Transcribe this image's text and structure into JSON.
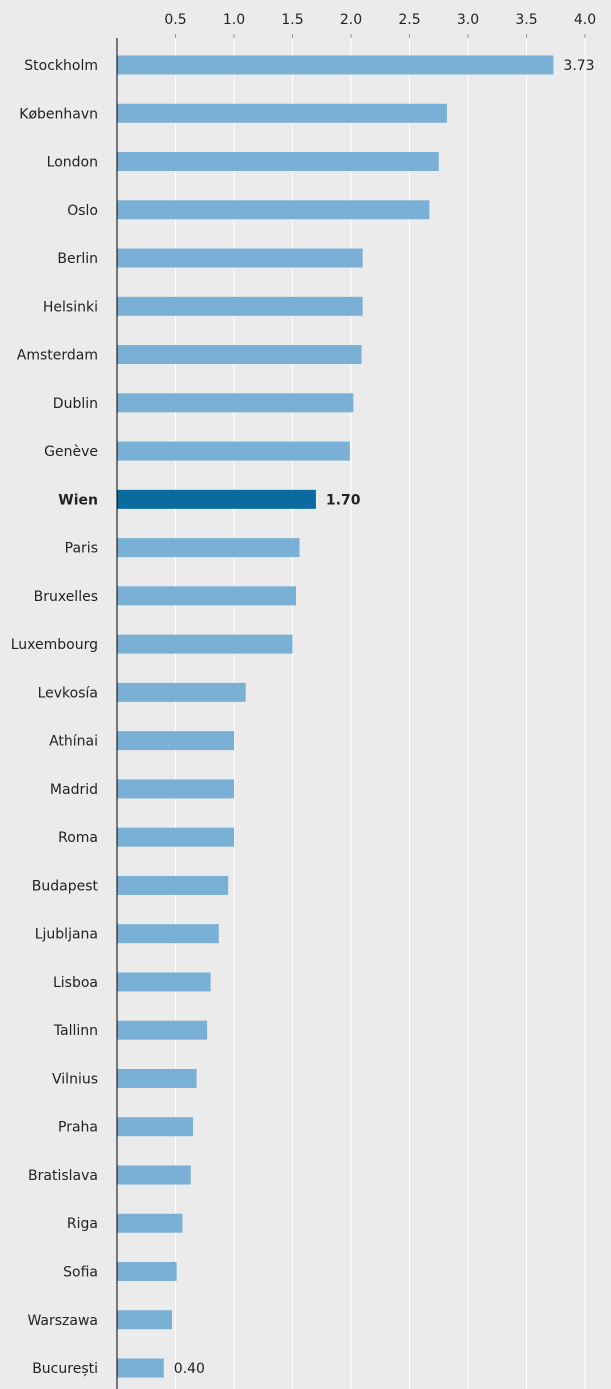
{
  "chart_data": {
    "type": "bar",
    "orientation": "horizontal",
    "title": "",
    "xlabel": "",
    "ylabel": "",
    "xlim": [
      0,
      4.0
    ],
    "x_ticks": [
      "0.5",
      "1.0",
      "1.5",
      "2.0",
      "2.5",
      "3.0",
      "3.5",
      "4.0"
    ],
    "x_tick_values": [
      0.5,
      1.0,
      1.5,
      2.0,
      2.5,
      3.0,
      3.5,
      4.0
    ],
    "x_axis_position": "top",
    "grid": true,
    "categories": [
      "Stockholm",
      "København",
      "London",
      "Oslo",
      "Berlin",
      "Helsinki",
      "Amsterdam",
      "Dublin",
      "Genève",
      "Wien",
      "Paris",
      "Bruxelles",
      "Luxembourg",
      "Levkosía",
      "Athínai",
      "Madrid",
      "Roma",
      "Budapest",
      "Ljubljana",
      "Lisboa",
      "Tallinn",
      "Vilnius",
      "Praha",
      "Bratislava",
      "Riga",
      "Sofia",
      "Warszawa",
      "București"
    ],
    "values": [
      3.73,
      2.82,
      2.75,
      2.67,
      2.1,
      2.1,
      2.09,
      2.02,
      1.99,
      1.7,
      1.56,
      1.53,
      1.5,
      1.1,
      1.0,
      1.0,
      1.0,
      0.95,
      0.87,
      0.8,
      0.77,
      0.68,
      0.65,
      0.63,
      0.56,
      0.51,
      0.47,
      0.4
    ],
    "highlight": "Wien",
    "data_labels": [
      {
        "category": "Stockholm",
        "text": "3.73"
      },
      {
        "category": "Wien",
        "text": "1.70"
      },
      {
        "category": "București",
        "text": "0.40"
      }
    ],
    "colors": {
      "bar": "#7ab0d6",
      "highlight_bar": "#0b6aa0",
      "background": "#ebebeb",
      "grid": "#ffffff",
      "axis": "#000000"
    }
  }
}
